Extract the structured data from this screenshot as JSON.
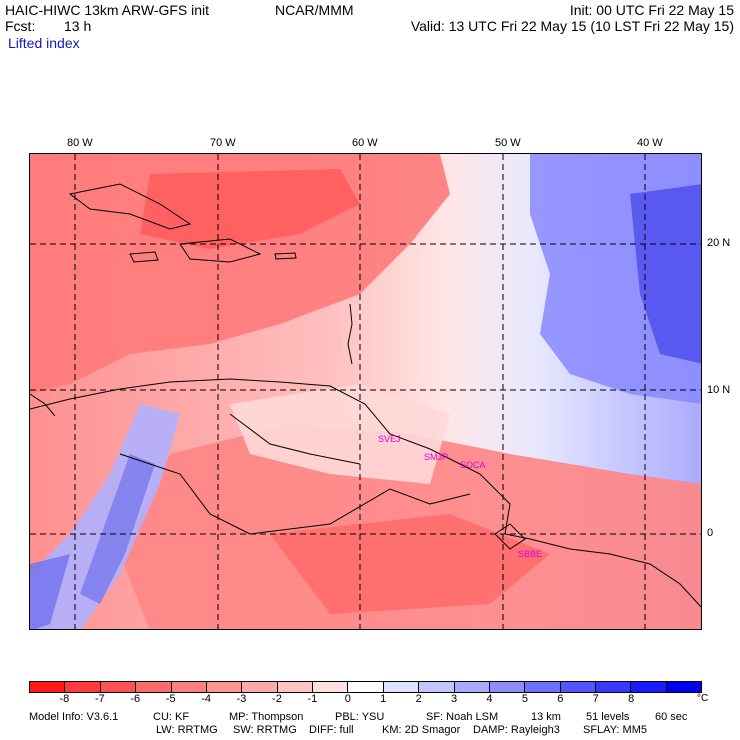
{
  "header": {
    "model_title": "HAIC-HIWC 13km ARW-GFS init",
    "center": "NCAR/MMM",
    "init_label": "Init: 00 UTC Fri 22 May 15",
    "fcst_label": "Fcst:",
    "fcst_value": "13 h",
    "valid_label": "Valid: 13 UTC Fri 22 May 15 (10 LST Fri 22 May 15)",
    "field_name": "Lifted index"
  },
  "map": {
    "lon_labels": [
      "80 W",
      "70 W",
      "60 W",
      "50 W",
      "40 W"
    ],
    "lat_labels": [
      "20 N",
      "10 N",
      "0"
    ],
    "stations": [
      "SVEJ",
      "SMJP",
      "SOCA",
      "SBBE"
    ]
  },
  "colorbar": {
    "ticks": [
      "-8",
      "-7",
      "-6",
      "-5",
      "-4",
      "-3",
      "-2",
      "-1",
      "0",
      "1",
      "2",
      "3",
      "4",
      "5",
      "6",
      "7",
      "8"
    ],
    "unit": "°C",
    "colors": [
      "#ff1a1a",
      "#ff3a3a",
      "#ff5252",
      "#ff6b6b",
      "#ff8080",
      "#ff9595",
      "#ffaaaa",
      "#ffc4c4",
      "#ffe0e0",
      "#ffffff",
      "#e0e0ff",
      "#c4c4ff",
      "#aaaaff",
      "#8d8dff",
      "#7070ff",
      "#5555ff",
      "#3838ff",
      "#1a1aff",
      "#0000ee"
    ]
  },
  "footer": {
    "line1": [
      "Model Info: V3.6.1",
      "CU: KF",
      "MP: Thompson",
      "PBL: YSU",
      "SF: Noah LSM",
      "13 km",
      "51 levels",
      "60 sec"
    ],
    "line2": [
      "LW: RRTMG",
      "SW: RRTMG",
      "DIFF: full",
      "KM: 2D Smagor",
      "DAMP: Rayleigh3",
      "SFLAY: MM5"
    ]
  }
}
